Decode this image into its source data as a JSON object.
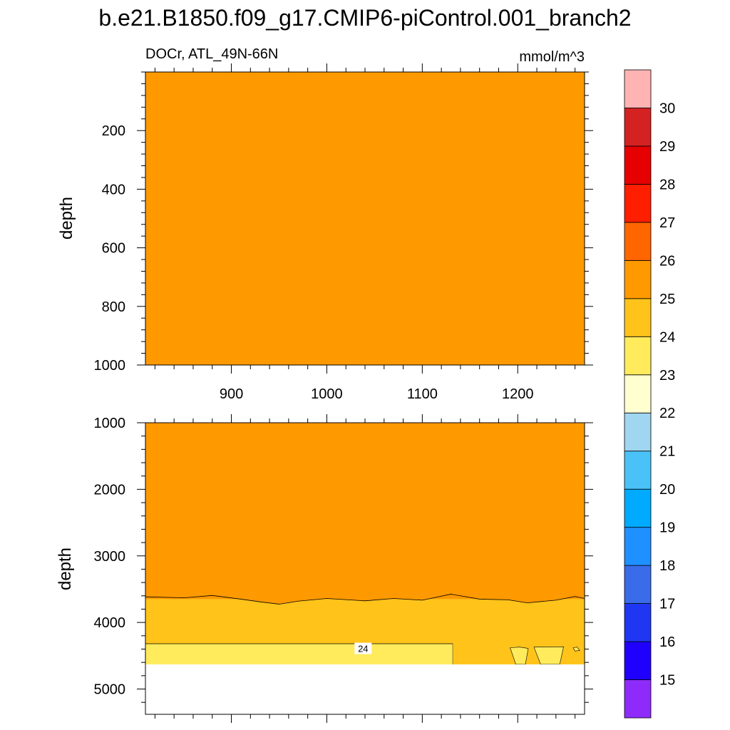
{
  "title": "b.e21.B1850.f09_g17.CMIP6-piControl.001_branch2",
  "subtitle_left": "DOCr, ATL_49N-66N",
  "subtitle_right": "mmol/m^3",
  "chart_data": [
    {
      "type": "heatmap",
      "panel": "upper",
      "xlabel": "",
      "ylabel": "depth",
      "xlim": [
        810,
        1270
      ],
      "ylim": [
        1000,
        0
      ],
      "xticks": [
        900,
        1000,
        1100,
        1200
      ],
      "yticks": [
        200,
        400,
        600,
        800,
        1000
      ],
      "fill_level": "25-26",
      "fill_color": "#FF9900"
    },
    {
      "type": "heatmap",
      "panel": "lower",
      "xlabel": "",
      "ylabel": "depth",
      "xlim": [
        810,
        1270
      ],
      "ylim": [
        5380,
        1000
      ],
      "yticks": [
        1000,
        2000,
        3000,
        4000,
        5000
      ],
      "xticks": [
        900,
        1000,
        1100,
        1200
      ],
      "data_bottom_depth": 4630,
      "bands": [
        {
          "level": "25-26",
          "color": "#FF9900",
          "from_depth": 1000,
          "to_depth": 3650
        },
        {
          "level": "24-25",
          "color": "#FFC31A",
          "from_depth": 3650,
          "to_depth": 4320
        },
        {
          "level": "23-24",
          "color": "#FFEB5C",
          "from_depth": 4320,
          "to_depth": 4630
        }
      ],
      "boundary_25_depth": [
        [
          810,
          3615
        ],
        [
          850,
          3630
        ],
        [
          880,
          3595
        ],
        [
          910,
          3650
        ],
        [
          930,
          3690
        ],
        [
          950,
          3725
        ],
        [
          970,
          3680
        ],
        [
          1000,
          3640
        ],
        [
          1040,
          3675
        ],
        [
          1070,
          3640
        ],
        [
          1100,
          3665
        ],
        [
          1130,
          3575
        ],
        [
          1160,
          3650
        ],
        [
          1190,
          3660
        ],
        [
          1210,
          3705
        ],
        [
          1240,
          3665
        ],
        [
          1260,
          3610
        ],
        [
          1270,
          3640
        ]
      ],
      "contour_labels": [
        {
          "text": "24",
          "x": 1038,
          "depth": 4390
        }
      ]
    }
  ],
  "colorbar": {
    "levels": [
      "15",
      "16",
      "17",
      "18",
      "19",
      "20",
      "21",
      "22",
      "23",
      "24",
      "25",
      "26",
      "27",
      "28",
      "29",
      "30"
    ],
    "colors": [
      "#8E2BFA",
      "#1F00FF",
      "#1F37F3",
      "#3A6BE8",
      "#1E90FF",
      "#00AAFF",
      "#4AC2F7",
      "#A0D6F0",
      "#FFFFD0",
      "#FFEB5C",
      "#FFC31A",
      "#FF9900",
      "#FF6600",
      "#FF1E00",
      "#E60000",
      "#D42222",
      "#FFB4B4"
    ]
  }
}
